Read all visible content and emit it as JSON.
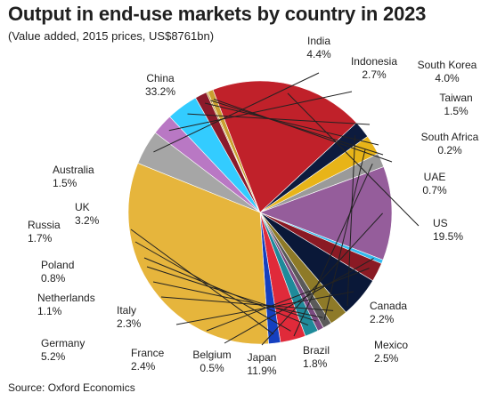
{
  "title": "Output in end-use markets by country in 2023",
  "subtitle": "(Value added, 2015 prices, US$8761bn)",
  "source": "Source: Oxford Economics",
  "chart_data": {
    "type": "pie",
    "title": "Output in end-use markets by country in 2023",
    "subtitle": "(Value added, 2015 prices, US$8761bn)",
    "slices": [
      {
        "label": "India",
        "value_label": "4.4%",
        "value": 4.4,
        "color": "#a6a6a6"
      },
      {
        "label": "Indonesia",
        "value_label": "2.7%",
        "value": 2.7,
        "color": "#b978c4"
      },
      {
        "label": "South Korea",
        "value_label": "4.0%",
        "value": 4.0,
        "color": "#33ccff"
      },
      {
        "label": "Taiwan",
        "value_label": "1.5%",
        "value": 1.5,
        "color": "#8b1a2b"
      },
      {
        "label": "South Africa",
        "value_label": "0.2%",
        "value": 0.2,
        "color": "#c09a2e"
      },
      {
        "label": "UAE",
        "value_label": "0.7%",
        "value": 0.7,
        "color": "#c9a030"
      },
      {
        "label": "US",
        "value_label": "19.5%",
        "value": 19.5,
        "color": "#c0212a"
      },
      {
        "label": "Canada",
        "value_label": "2.2%",
        "value": 2.2,
        "color": "#0d1b3e"
      },
      {
        "label": "Mexico",
        "value_label": "2.5%",
        "value": 2.5,
        "color": "#e8b418"
      },
      {
        "label": "Brazil",
        "value_label": "1.8%",
        "value": 1.8,
        "color": "#9a9a9a"
      },
      {
        "label": "Japan",
        "value_label": "11.9%",
        "value": 11.9,
        "color": "#955d9b"
      },
      {
        "label": "Belgium",
        "value_label": "0.5%",
        "value": 0.5,
        "color": "#33bbee"
      },
      {
        "label": "France",
        "value_label": "2.4%",
        "value": 2.4,
        "color": "#8a1a24"
      },
      {
        "label": "Germany",
        "value_label": "5.2%",
        "value": 5.2,
        "color": "#0a1838"
      },
      {
        "label": "Italy",
        "value_label": "2.3%",
        "value": 2.3,
        "color": "#8e7a28"
      },
      {
        "label": "Netherlands",
        "value_label": "1.1%",
        "value": 1.1,
        "color": "#5a5a5a"
      },
      {
        "label": "Poland",
        "value_label": "0.8%",
        "value": 0.8,
        "color": "#7a4a80"
      },
      {
        "label": "Russia",
        "value_label": "1.7%",
        "value": 1.7,
        "color": "#1f8a9a"
      },
      {
        "label": "UK",
        "value_label": "3.2%",
        "value": 3.2,
        "color": "#e02a3a"
      },
      {
        "label": "Australia",
        "value_label": "1.5%",
        "value": 1.5,
        "color": "#1540c0"
      },
      {
        "label": "China",
        "value_label": "33.2%",
        "value": 33.2,
        "color": "#e6b53c"
      }
    ]
  }
}
